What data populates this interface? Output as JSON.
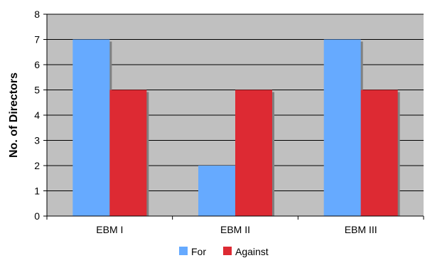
{
  "chart_data": {
    "type": "bar",
    "title": "",
    "xlabel": "",
    "ylabel": "No. of Directors",
    "ylim": [
      0,
      8
    ],
    "yticks": [
      0,
      1,
      2,
      3,
      4,
      5,
      6,
      7,
      8
    ],
    "grid": true,
    "legend_position": "bottom",
    "categories": [
      "EBM I",
      "EBM II",
      "EBM III"
    ],
    "series": [
      {
        "name": "For",
        "values": [
          7,
          2,
          7
        ],
        "color": "#66aaff"
      },
      {
        "name": "Against",
        "values": [
          5,
          5,
          5
        ],
        "color": "#dd2a33"
      }
    ],
    "plot_background": "#c0c0c0",
    "bar_shadow": "#808080"
  }
}
